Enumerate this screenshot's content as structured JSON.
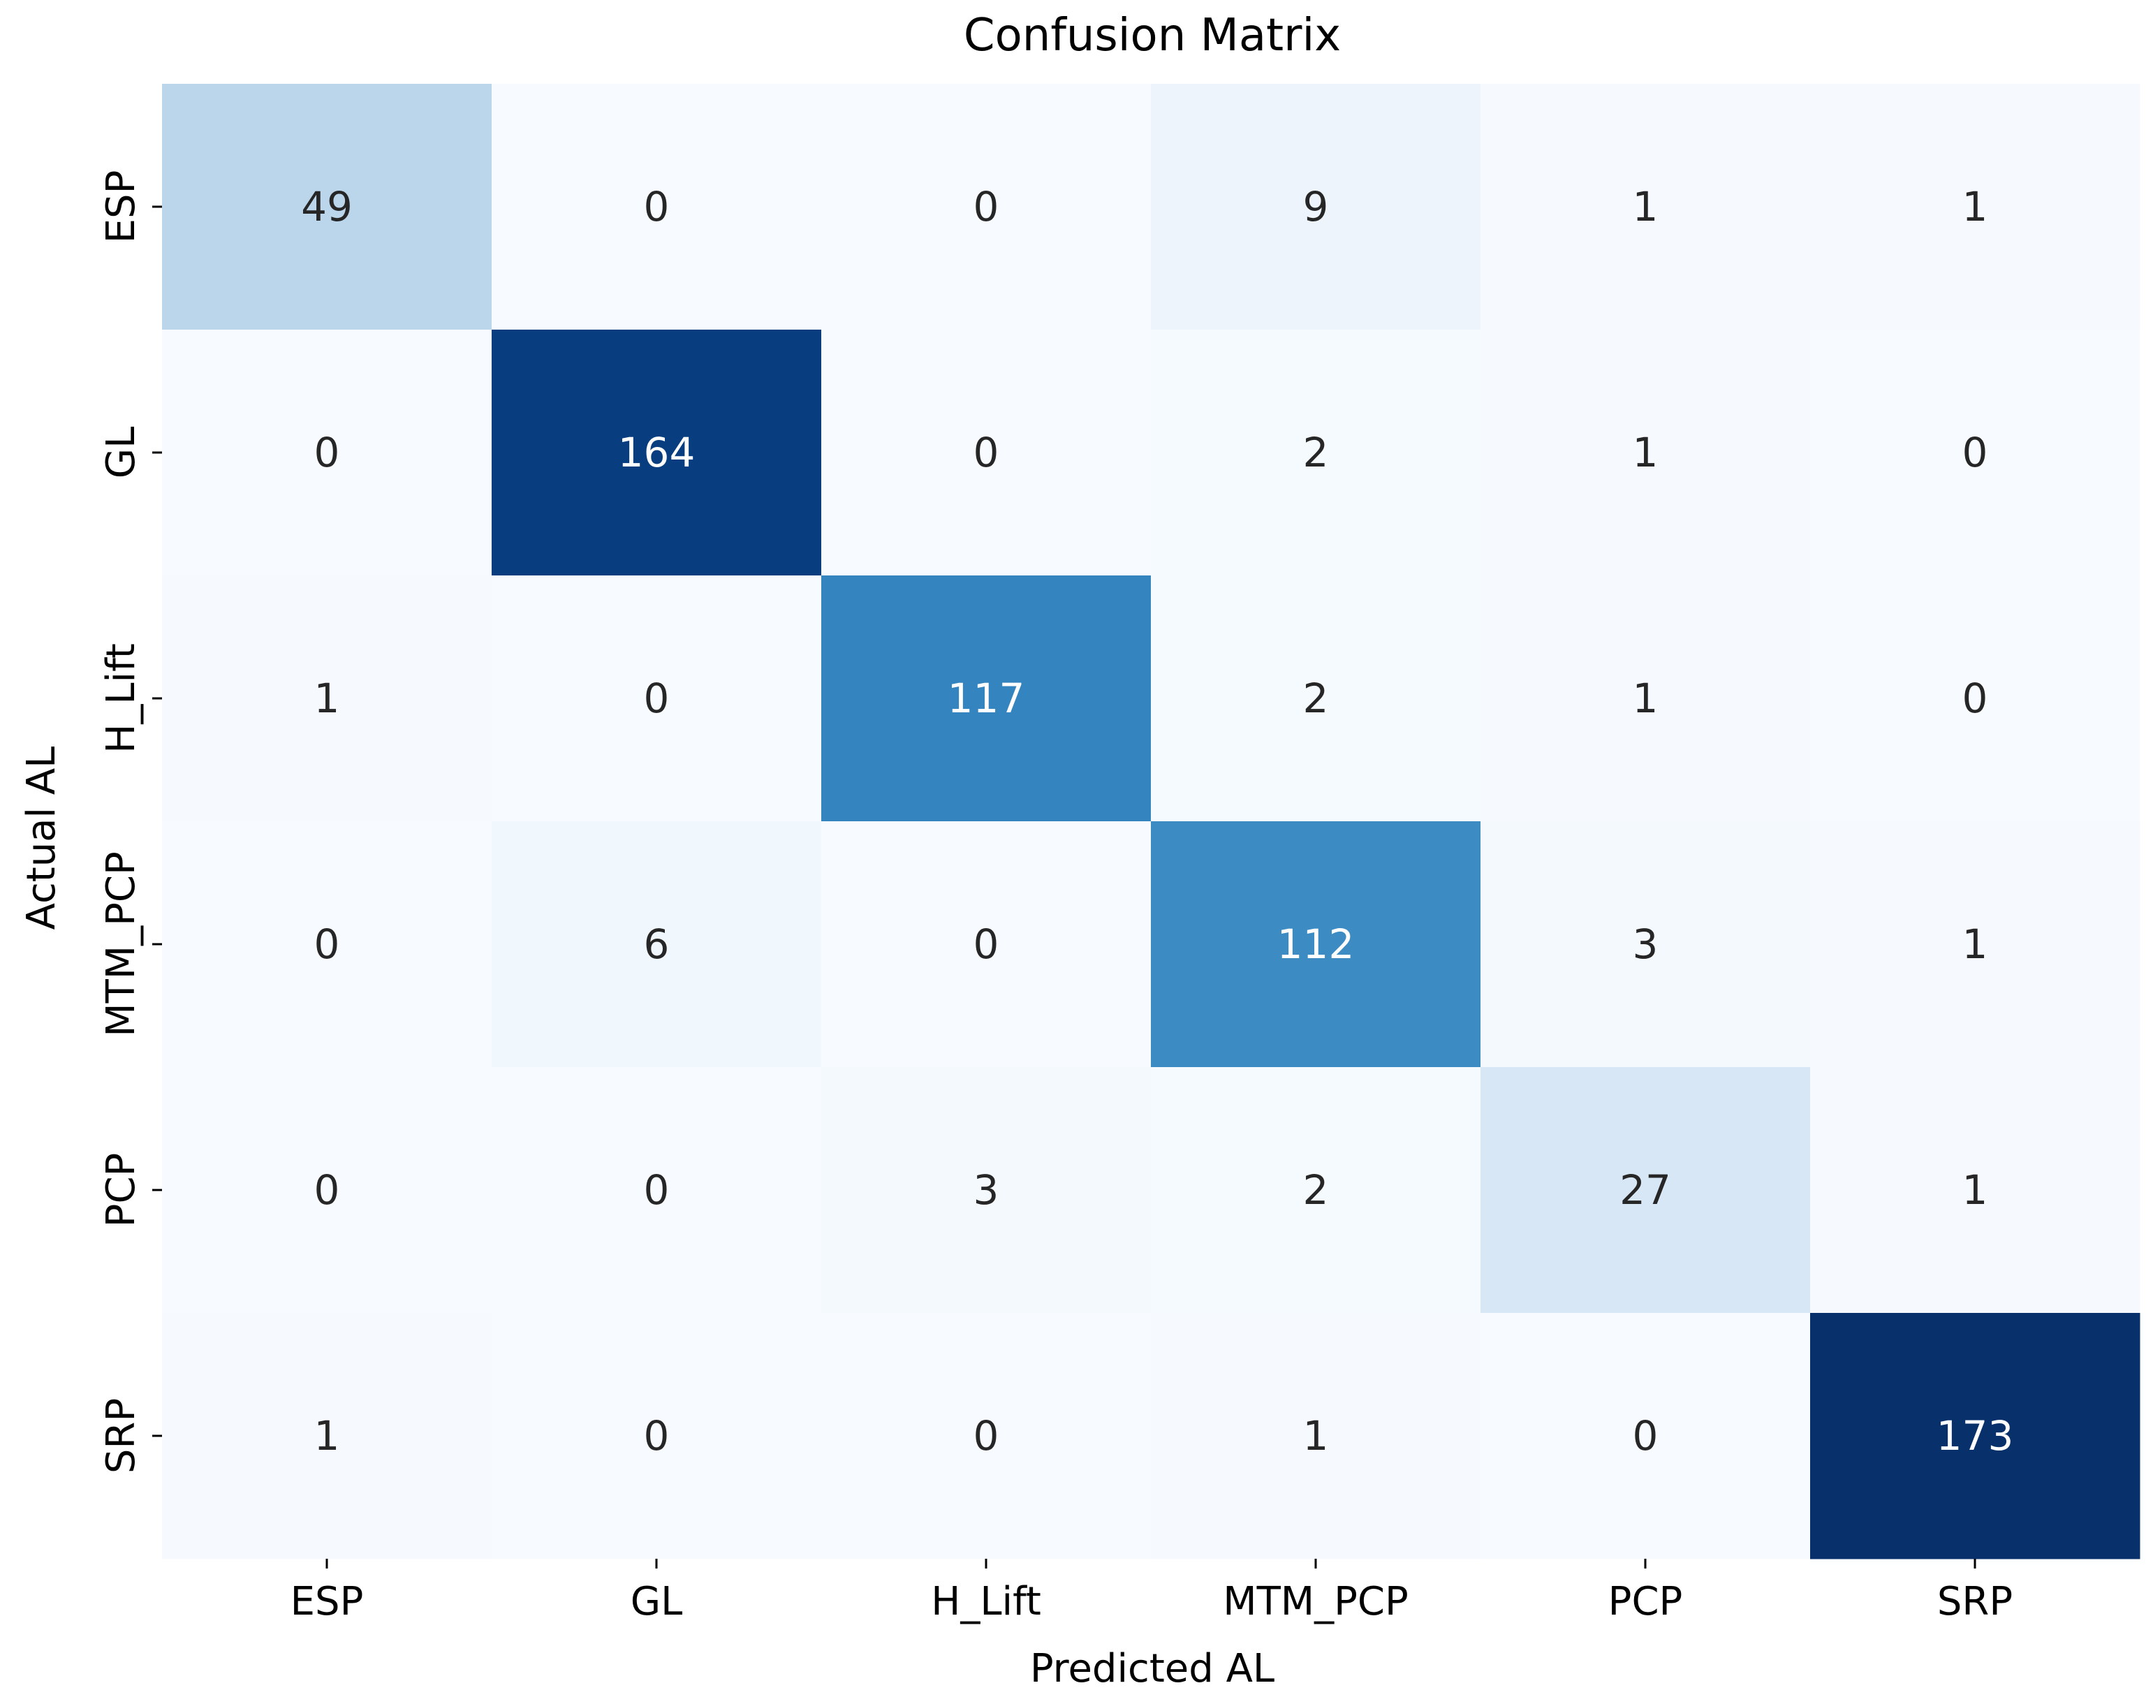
{
  "chart_data": {
    "type": "heatmap",
    "title": "Confusion Matrix",
    "xlabel": "Predicted AL",
    "ylabel": "Actual AL",
    "x_categories": [
      "ESP",
      "GL",
      "H_Lift",
      "MTM_PCP",
      "PCP",
      "SRP"
    ],
    "y_categories": [
      "ESP",
      "GL",
      "H_Lift",
      "MTM_PCP",
      "PCP",
      "SRP"
    ],
    "matrix": [
      [
        49,
        0,
        0,
        9,
        1,
        1
      ],
      [
        0,
        164,
        0,
        2,
        1,
        0
      ],
      [
        1,
        0,
        117,
        2,
        1,
        0
      ],
      [
        0,
        6,
        0,
        112,
        3,
        1
      ],
      [
        0,
        0,
        3,
        2,
        27,
        1
      ],
      [
        1,
        0,
        0,
        1,
        0,
        173
      ]
    ],
    "colormap": "Blues",
    "value_range": [
      0,
      173
    ],
    "colorbar": false
  }
}
